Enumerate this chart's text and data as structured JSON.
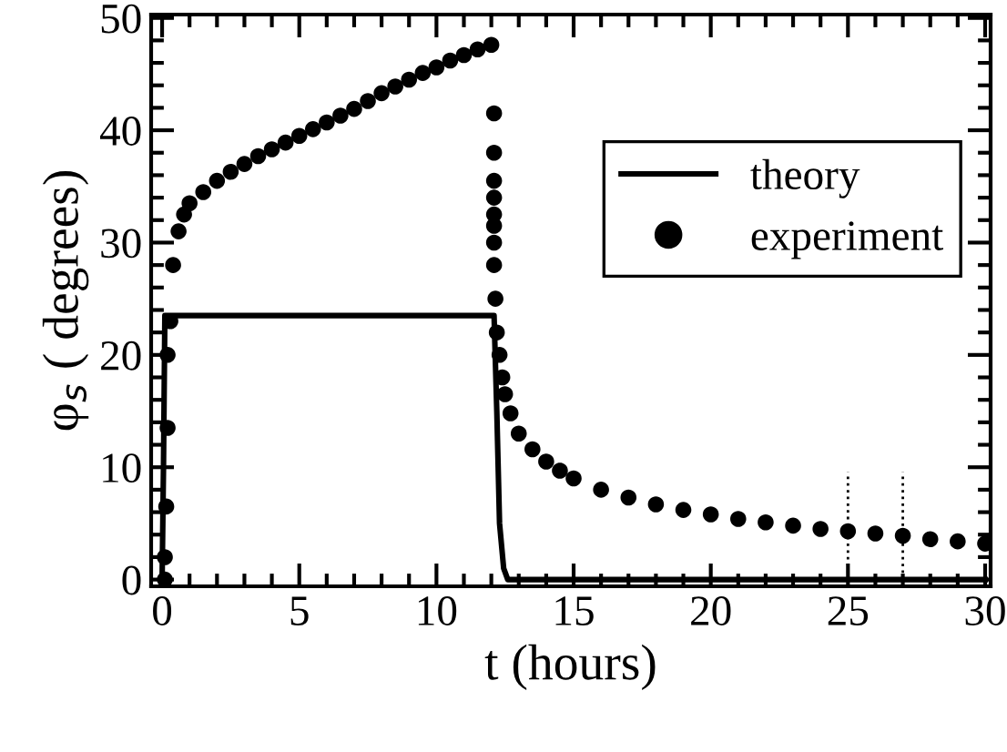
{
  "chart_data": {
    "type": "line",
    "xlabel": "t (hours)",
    "ylabel": "φ$_{s}$ ( degrees)",
    "xlim": [
      -0.4,
      30.2
    ],
    "ylim": [
      -0.6,
      50.3
    ],
    "xticks": [
      0,
      5,
      10,
      15,
      20,
      25,
      30
    ],
    "yticks": [
      0,
      10,
      20,
      30,
      40,
      50
    ],
    "grid": false,
    "legend": "right",
    "series": [
      {
        "name": "theory",
        "color": "#000000",
        "marker": "none",
        "line_style": "solid",
        "x": [
          0,
          0.05,
          0.1,
          12.1,
          12.2,
          12.3,
          12.45,
          12.6,
          30
        ],
        "values": [
          0,
          10,
          23.5,
          23.5,
          15,
          5,
          1,
          0,
          0
        ]
      },
      {
        "name": "experiment",
        "type": "scatter",
        "color": "#000000",
        "marker": "circle",
        "x": [
          0.1,
          0.1,
          0.15,
          0.2,
          0.2,
          0.3,
          0.4,
          0.6,
          0.8,
          1,
          1.5,
          2,
          2.5,
          3,
          3.5,
          4,
          4.5,
          5,
          5.5,
          6,
          6.5,
          7,
          7.5,
          8,
          8.5,
          9,
          9.5,
          10,
          10.5,
          11,
          11.5,
          12,
          12.1,
          12.1,
          12.1,
          12.1,
          12.1,
          12.1,
          12.1,
          12.1,
          12.15,
          12.2,
          12.3,
          12.4,
          12.5,
          12.7,
          13,
          13.5,
          14,
          14.5,
          15,
          16,
          17,
          18,
          19,
          20,
          21,
          22,
          23,
          24,
          25,
          26,
          27,
          28,
          29,
          30
        ],
        "values": [
          0,
          2,
          6.5,
          13.5,
          20,
          23,
          28,
          31,
          32.5,
          33.5,
          34.5,
          35.5,
          36.3,
          37,
          37.7,
          38.3,
          38.9,
          39.5,
          40.1,
          40.7,
          41.3,
          41.9,
          42.6,
          43.3,
          43.9,
          44.5,
          45.1,
          45.6,
          46.2,
          46.7,
          47.2,
          47.6,
          41.5,
          38,
          35.5,
          34,
          32.5,
          31.5,
          30,
          28,
          25,
          22,
          20,
          18,
          16.5,
          14.8,
          13,
          11.6,
          10.5,
          9.7,
          9,
          8,
          7.3,
          6.7,
          6.2,
          5.8,
          5.4,
          5.1,
          4.8,
          4.5,
          4.3,
          4.1,
          3.9,
          3.6,
          3.4,
          3.2
        ]
      }
    ],
    "ref_lines": [
      {
        "axis": "x",
        "value": 25,
        "line_style": "dotted",
        "color": "#000000"
      },
      {
        "axis": "x",
        "value": 27,
        "line_style": "dotted",
        "color": "#000000"
      }
    ]
  }
}
